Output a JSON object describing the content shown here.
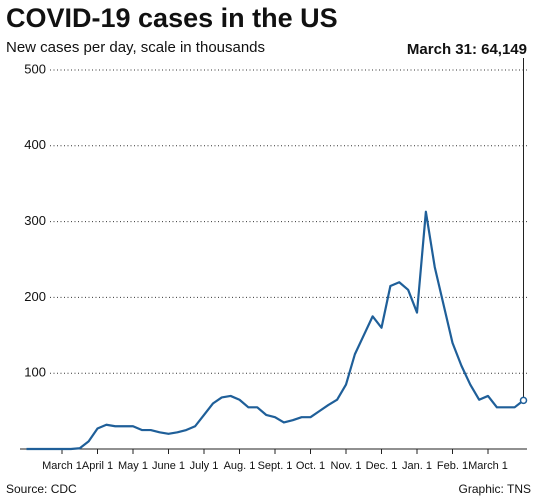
{
  "chart_data": {
    "type": "line",
    "title": "COVID-19 cases in the US",
    "subtitle": "New cases per day, scale in thousands",
    "annotation": "March 31: 64,149",
    "source": "Source: CDC",
    "credit": "Graphic: TNS",
    "categories": [
      null,
      null,
      null,
      null,
      "March 1",
      null,
      null,
      null,
      "April 1",
      null,
      null,
      null,
      "May 1",
      null,
      null,
      null,
      "June 1",
      null,
      null,
      null,
      "July 1",
      null,
      null,
      null,
      "Aug. 1",
      null,
      null,
      null,
      "Sept. 1",
      null,
      null,
      null,
      "Oct. 1",
      null,
      null,
      null,
      "Nov. 1",
      null,
      null,
      null,
      "Dec. 1",
      null,
      null,
      null,
      "Jan. 1",
      null,
      null,
      null,
      "Feb. 1",
      null,
      null,
      null,
      "March 1",
      null,
      null,
      null,
      null
    ],
    "series": [
      {
        "name": "New cases",
        "color": "#1f5f99",
        "values": [
          0,
          0,
          0,
          0,
          0,
          0,
          1,
          10,
          27,
          32,
          30,
          30,
          30,
          25,
          25,
          22,
          20,
          22,
          25,
          30,
          45,
          60,
          68,
          70,
          65,
          55,
          55,
          45,
          42,
          35,
          38,
          42,
          42,
          50,
          58,
          65,
          85,
          125,
          150,
          175,
          160,
          215,
          220,
          210,
          180,
          313,
          240,
          190,
          140,
          110,
          85,
          65,
          70,
          55,
          55,
          55,
          64.149
        ]
      }
    ],
    "ylim": [
      0,
      500
    ],
    "yticks": [
      100,
      200,
      300,
      400,
      500
    ],
    "grid": true
  }
}
